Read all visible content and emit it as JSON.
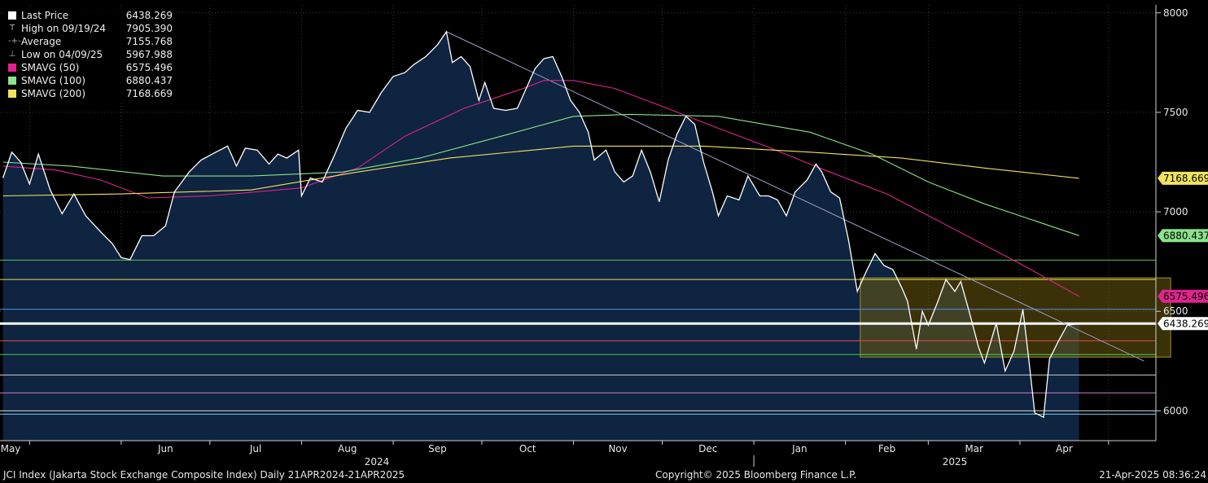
{
  "chart_data": {
    "type": "line",
    "x_range": [
      "2024-04-21",
      "2025-04-21"
    ],
    "ylim": [
      5850,
      8040
    ],
    "y_ticks": [
      6000,
      6500,
      7000,
      7500,
      8000
    ],
    "x_month_labels": [
      "May",
      "Jun",
      "Jul",
      "Aug",
      "Sep",
      "Oct",
      "Nov",
      "Dec",
      "Jan",
      "Feb",
      "Mar",
      "Apr"
    ],
    "year_labels": [
      "2024",
      "2025"
    ],
    "legend": [
      {
        "label": "Last Price",
        "value": "6438.269",
        "color": "#ffffff",
        "glyph": "swatch"
      },
      {
        "label": "High on 09/19/24",
        "value": "7905.390",
        "color": "#9a9a9a",
        "glyph": "T"
      },
      {
        "label": "Average",
        "value": "7155.768",
        "color": "#9a9a9a",
        "glyph": "-+-"
      },
      {
        "label": "Low on 04/09/25",
        "value": "5967.988",
        "color": "#9a9a9a",
        "glyph": "⊥"
      },
      {
        "label": "SMAVG (50)",
        "value": "6575.496",
        "color": "#e0238d",
        "glyph": "swatch"
      },
      {
        "label": "SMAVG (100)",
        "value": "6880.437",
        "color": "#8be38b",
        "glyph": "swatch"
      },
      {
        "label": "SMAVG (200)",
        "value": "7168.669",
        "color": "#f2e35f",
        "glyph": "swatch"
      }
    ],
    "right_labels": [
      {
        "text": "7168.669",
        "value": 7168.669,
        "bg": "#f2e35f"
      },
      {
        "text": "6880.437",
        "value": 6880.437,
        "bg": "#8be38b"
      },
      {
        "text": "6575.496",
        "value": 6575.496,
        "bg": "#e0238d"
      },
      {
        "text": "6438.269",
        "value": 6438.269,
        "bg": "#ffffff"
      }
    ],
    "series": [
      {
        "name": "Last Price",
        "color": "#ffffff",
        "points": [
          [
            "2024-04-22",
            7170
          ],
          [
            "2024-04-25",
            7300
          ],
          [
            "2024-04-28",
            7250
          ],
          [
            "2024-05-01",
            7140
          ],
          [
            "2024-05-04",
            7290
          ],
          [
            "2024-05-08",
            7110
          ],
          [
            "2024-05-12",
            6990
          ],
          [
            "2024-05-16",
            7090
          ],
          [
            "2024-05-20",
            6980
          ],
          [
            "2024-05-25",
            6900
          ],
          [
            "2024-05-29",
            6840
          ],
          [
            "2024-06-01",
            6770
          ],
          [
            "2024-06-04",
            6760
          ],
          [
            "2024-06-08",
            6880
          ],
          [
            "2024-06-12",
            6880
          ],
          [
            "2024-06-16",
            6930
          ],
          [
            "2024-06-19",
            7100
          ],
          [
            "2024-06-24",
            7200
          ],
          [
            "2024-06-28",
            7260
          ],
          [
            "2024-07-03",
            7300
          ],
          [
            "2024-07-07",
            7330
          ],
          [
            "2024-07-10",
            7230
          ],
          [
            "2024-07-13",
            7320
          ],
          [
            "2024-07-17",
            7310
          ],
          [
            "2024-07-21",
            7240
          ],
          [
            "2024-07-24",
            7290
          ],
          [
            "2024-07-27",
            7270
          ],
          [
            "2024-07-31",
            7310
          ],
          [
            "2024-08-01",
            7080
          ],
          [
            "2024-08-04",
            7170
          ],
          [
            "2024-08-08",
            7150
          ],
          [
            "2024-08-12",
            7280
          ],
          [
            "2024-08-16",
            7420
          ],
          [
            "2024-08-20",
            7510
          ],
          [
            "2024-08-24",
            7500
          ],
          [
            "2024-08-28",
            7600
          ],
          [
            "2024-09-01",
            7680
          ],
          [
            "2024-09-05",
            7700
          ],
          [
            "2024-09-08",
            7740
          ],
          [
            "2024-09-12",
            7780
          ],
          [
            "2024-09-16",
            7840
          ],
          [
            "2024-09-19",
            7905.39
          ],
          [
            "2024-09-21",
            7750
          ],
          [
            "2024-09-24",
            7780
          ],
          [
            "2024-09-27",
            7730
          ],
          [
            "2024-09-30",
            7560
          ],
          [
            "2024-10-02",
            7650
          ],
          [
            "2024-10-05",
            7520
          ],
          [
            "2024-10-09",
            7510
          ],
          [
            "2024-10-13",
            7520
          ],
          [
            "2024-10-16",
            7620
          ],
          [
            "2024-10-19",
            7720
          ],
          [
            "2024-10-22",
            7770
          ],
          [
            "2024-10-25",
            7780
          ],
          [
            "2024-10-28",
            7680
          ],
          [
            "2024-10-31",
            7560
          ],
          [
            "2024-11-03",
            7500
          ],
          [
            "2024-11-06",
            7400
          ],
          [
            "2024-11-08",
            7260
          ],
          [
            "2024-11-12",
            7310
          ],
          [
            "2024-11-15",
            7200
          ],
          [
            "2024-11-18",
            7150
          ],
          [
            "2024-11-21",
            7180
          ],
          [
            "2024-11-24",
            7310
          ],
          [
            "2024-11-27",
            7200
          ],
          [
            "2024-11-30",
            7050
          ],
          [
            "2024-12-03",
            7260
          ],
          [
            "2024-12-06",
            7390
          ],
          [
            "2024-12-09",
            7480
          ],
          [
            "2024-12-12",
            7440
          ],
          [
            "2024-12-15",
            7250
          ],
          [
            "2024-12-18",
            7100
          ],
          [
            "2024-12-20",
            6980
          ],
          [
            "2024-12-23",
            7080
          ],
          [
            "2024-12-27",
            7060
          ],
          [
            "2024-12-30",
            7180
          ],
          [
            "2025-01-03",
            7080
          ],
          [
            "2025-01-06",
            7080
          ],
          [
            "2025-01-09",
            7060
          ],
          [
            "2025-01-12",
            6980
          ],
          [
            "2025-01-15",
            7100
          ],
          [
            "2025-01-19",
            7160
          ],
          [
            "2025-01-22",
            7240
          ],
          [
            "2025-01-24",
            7200
          ],
          [
            "2025-01-27",
            7100
          ],
          [
            "2025-01-30",
            7070
          ],
          [
            "2025-02-02",
            6860
          ],
          [
            "2025-02-05",
            6600
          ],
          [
            "2025-02-08",
            6700
          ],
          [
            "2025-02-11",
            6790
          ],
          [
            "2025-02-14",
            6730
          ],
          [
            "2025-02-17",
            6710
          ],
          [
            "2025-02-20",
            6620
          ],
          [
            "2025-02-22",
            6550
          ],
          [
            "2025-02-25",
            6310
          ],
          [
            "2025-02-27",
            6500
          ],
          [
            "2025-03-01",
            6430
          ],
          [
            "2025-03-04",
            6540
          ],
          [
            "2025-03-07",
            6660
          ],
          [
            "2025-03-10",
            6600
          ],
          [
            "2025-03-12",
            6650
          ],
          [
            "2025-03-15",
            6490
          ],
          [
            "2025-03-18",
            6320
          ],
          [
            "2025-03-20",
            6240
          ],
          [
            "2025-03-24",
            6440
          ],
          [
            "2025-03-27",
            6200
          ],
          [
            "2025-03-30",
            6300
          ],
          [
            "2025-04-02",
            6510
          ],
          [
            "2025-04-04",
            6260
          ],
          [
            "2025-04-06",
            5990
          ],
          [
            "2025-04-09",
            5967.99
          ],
          [
            "2025-04-11",
            6260
          ],
          [
            "2025-04-14",
            6350
          ],
          [
            "2025-04-17",
            6430
          ],
          [
            "2025-04-21",
            6438.27
          ]
        ]
      },
      {
        "name": "SMAVG (50)",
        "color": "#e0238d",
        "points": [
          [
            "2024-04-22",
            7230
          ],
          [
            "2024-05-10",
            7210
          ],
          [
            "2024-05-25",
            7160
          ],
          [
            "2024-06-10",
            7070
          ],
          [
            "2024-07-01",
            7080
          ],
          [
            "2024-08-01",
            7120
          ],
          [
            "2024-08-20",
            7220
          ],
          [
            "2024-09-05",
            7380
          ],
          [
            "2024-09-25",
            7520
          ],
          [
            "2024-10-15",
            7620
          ],
          [
            "2024-10-22",
            7660
          ],
          [
            "2024-11-01",
            7660
          ],
          [
            "2024-11-15",
            7620
          ],
          [
            "2024-12-01",
            7530
          ],
          [
            "2024-12-20",
            7420
          ],
          [
            "2025-01-05",
            7330
          ],
          [
            "2025-01-25",
            7210
          ],
          [
            "2025-02-15",
            7090
          ],
          [
            "2025-03-05",
            6950
          ],
          [
            "2025-04-01",
            6740
          ],
          [
            "2025-04-21",
            6575.5
          ]
        ]
      },
      {
        "name": "SMAVG (100)",
        "color": "#8be38b",
        "points": [
          [
            "2024-04-22",
            7250
          ],
          [
            "2024-05-15",
            7230
          ],
          [
            "2024-06-15",
            7180
          ],
          [
            "2024-07-15",
            7180
          ],
          [
            "2024-08-15",
            7200
          ],
          [
            "2024-09-10",
            7270
          ],
          [
            "2024-10-10",
            7390
          ],
          [
            "2024-11-01",
            7480
          ],
          [
            "2024-11-20",
            7490
          ],
          [
            "2024-12-20",
            7480
          ],
          [
            "2025-01-20",
            7400
          ],
          [
            "2025-02-10",
            7290
          ],
          [
            "2025-03-01",
            7150
          ],
          [
            "2025-03-20",
            7040
          ],
          [
            "2025-04-21",
            6880.44
          ]
        ]
      },
      {
        "name": "SMAVG (200)",
        "color": "#f2e35f",
        "points": [
          [
            "2024-04-22",
            7080
          ],
          [
            "2024-06-01",
            7090
          ],
          [
            "2024-07-15",
            7110
          ],
          [
            "2024-08-20",
            7200
          ],
          [
            "2024-09-20",
            7270
          ],
          [
            "2024-11-01",
            7330
          ],
          [
            "2024-12-15",
            7330
          ],
          [
            "2025-01-20",
            7300
          ],
          [
            "2025-02-20",
            7270
          ],
          [
            "2025-03-20",
            7220
          ],
          [
            "2025-04-21",
            7168.67
          ]
        ]
      }
    ],
    "trend_line": {
      "color": "#9ea0c8",
      "from": [
        "2024-09-19",
        7905.39
      ],
      "to": [
        "2025-05-13",
        6250
      ]
    },
    "horizontal_lines": [
      {
        "value": 6757,
        "color": "#5fbf5f"
      },
      {
        "value": 6660,
        "color": "#e6dd5a"
      },
      {
        "value": 6510,
        "color": "#5a8ee6"
      },
      {
        "value": 6438.269,
        "color": "#ffffff",
        "width": 3
      },
      {
        "value": 6352,
        "color": "#e04a4a"
      },
      {
        "value": 6283,
        "color": "#3fd14f"
      },
      {
        "value": 6180,
        "color": "#cccccc"
      },
      {
        "value": 6090,
        "color": "#c97fd0"
      },
      {
        "value": 6000,
        "color": "#d6d6d6"
      },
      {
        "value": 5983,
        "color": "#6fc8e8"
      }
    ],
    "highlight_box": {
      "x0": "2025-02-06",
      "x1": "2025-05-22",
      "y0": 6270,
      "y1": 6668,
      "fill": "#6b5a10",
      "edge": "#9e8f2a"
    }
  },
  "footer": {
    "left": "JCI Index (Jakarta Stock Exchange Composite Index)  Daily 21APR2024-21APR2025",
    "center": "Copyright© 2025 Bloomberg Finance L.P.",
    "right": "21-Apr-2025 08:36:24"
  }
}
